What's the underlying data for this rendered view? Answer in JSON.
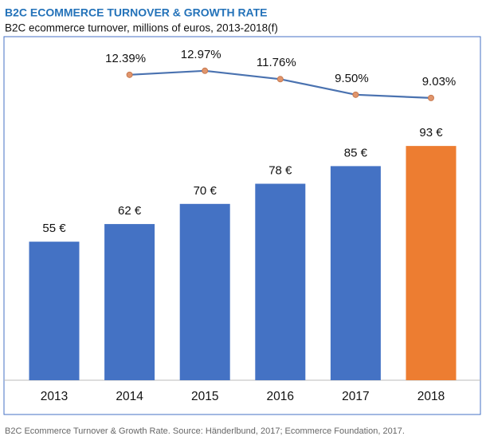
{
  "chart_data": {
    "type": "bar",
    "title": "B2C ECOMMERCE TURNOVER & GROWTH RATE",
    "subtitle": "B2C ecommerce turnover, millions of euros, 2013-2018(f)",
    "source": "B2C Ecommerce Turnover & Growth Rate. Source: Händerlbund, 2017; Ecommerce Foundation, 2017.",
    "categories": [
      "2013",
      "2014",
      "2015",
      "2016",
      "2017",
      "2018"
    ],
    "series": [
      {
        "type": "bar",
        "colors": [
          "#4472c4",
          "#4472c4",
          "#4472c4",
          "#4472c4",
          "#4472c4",
          "#ed7d31"
        ],
        "values": [
          55,
          62,
          70,
          78,
          85,
          93
        ],
        "value_labels": [
          "55 €",
          "62 €",
          "70 €",
          "78 €",
          "85 €",
          "93 €"
        ]
      },
      {
        "type": "line",
        "color": "#4a72b0",
        "marker_color": "#e0956c",
        "values": [
          null,
          12.39,
          12.97,
          11.76,
          9.5,
          9.03
        ],
        "value_labels": [
          null,
          "12.39%",
          "12.97%",
          "11.76%",
          "9.50%",
          "9.03%"
        ]
      }
    ]
  }
}
